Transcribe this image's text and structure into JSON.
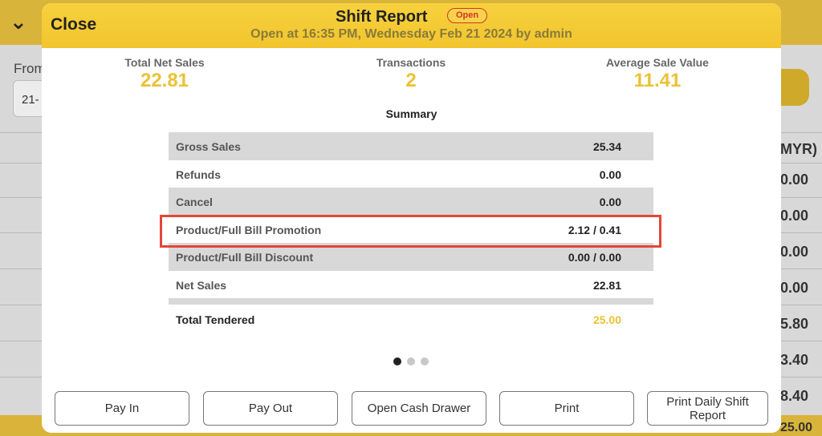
{
  "background": {
    "from_label": "From",
    "date_value": "21-",
    "column_header": "MYR)",
    "rows": [
      "0.00",
      "0.00",
      "0.00",
      "0.00",
      "5.80",
      "3.40",
      "8.40",
      "25.00"
    ]
  },
  "modal": {
    "close_label": "Close",
    "title": "Shift Report",
    "status_badge": "Open",
    "subtitle": "Open at 16:35 PM, Wednesday Feb 21 2024 by admin",
    "stats": [
      {
        "label": "Total Net Sales",
        "value": "22.81"
      },
      {
        "label": "Transactions",
        "value": "2"
      },
      {
        "label": "Average Sale Value",
        "value": "11.41"
      }
    ],
    "summary_title": "Summary",
    "summary_rows": [
      {
        "label": "Gross Sales",
        "value": "25.34"
      },
      {
        "label": "Refunds",
        "value": "0.00"
      },
      {
        "label": "Cancel",
        "value": "0.00"
      },
      {
        "label": "Product/Full Bill Promotion",
        "value": "2.12 / 0.41"
      },
      {
        "label": "Product/Full Bill Discount",
        "value": "0.00 / 0.00"
      },
      {
        "label": "Net Sales",
        "value": "22.81"
      }
    ],
    "total_tendered": {
      "label": "Total Tendered",
      "value": "25.00"
    },
    "pagination": {
      "pages": 3,
      "active_page": 1
    },
    "buttons": {
      "pay_in": "Pay In",
      "pay_out": "Pay Out",
      "open_cash_drawer": "Open Cash Drawer",
      "print": "Print",
      "print_daily_shift_report": "Print Daily Shift Report"
    }
  },
  "colors": {
    "header_yellow": "#f2c630",
    "value_yellow": "#eac235",
    "highlight_red": "#e4463a",
    "badge_red": "#d4342a"
  }
}
